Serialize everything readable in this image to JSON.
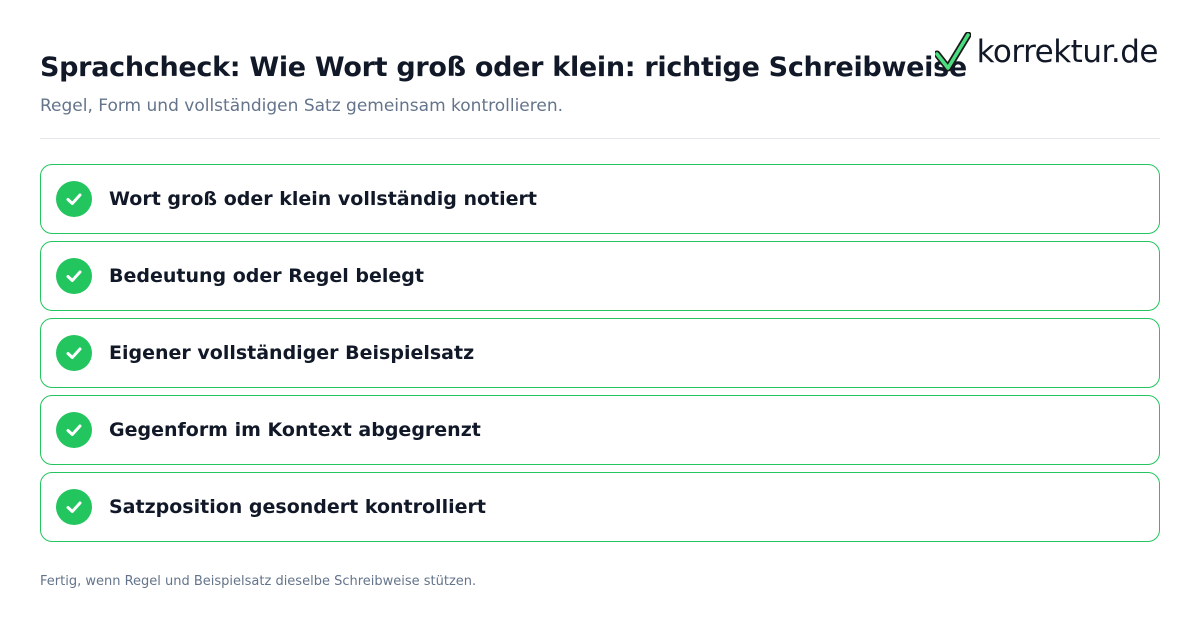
{
  "header": {
    "title": "Sprachcheck: Wie Wort groß oder klein: richtige Schreibweise",
    "subtitle": "Regel, Form und vollständigen Satz gemeinsam kontrollieren."
  },
  "logo": {
    "text": "korrektur.de",
    "icon": "checkmark-icon",
    "check_color": "#22c55e"
  },
  "checklist": {
    "items": [
      {
        "label": "Wort groß oder klein vollständig notiert",
        "checked": true
      },
      {
        "label": "Bedeutung oder Regel belegt",
        "checked": true
      },
      {
        "label": "Eigener vollständiger Beispielsatz",
        "checked": true
      },
      {
        "label": "Gegenform im Kontext abgegrenzt",
        "checked": true
      },
      {
        "label": "Satzposition gesondert kontrolliert",
        "checked": true
      }
    ]
  },
  "footer": {
    "note": "Fertig, wenn Regel und Beispielsatz dieselbe Schreibweise stützen."
  },
  "colors": {
    "accent": "#22c55e",
    "title": "#111827",
    "muted": "#64748b",
    "divider": "#e5e7eb"
  }
}
